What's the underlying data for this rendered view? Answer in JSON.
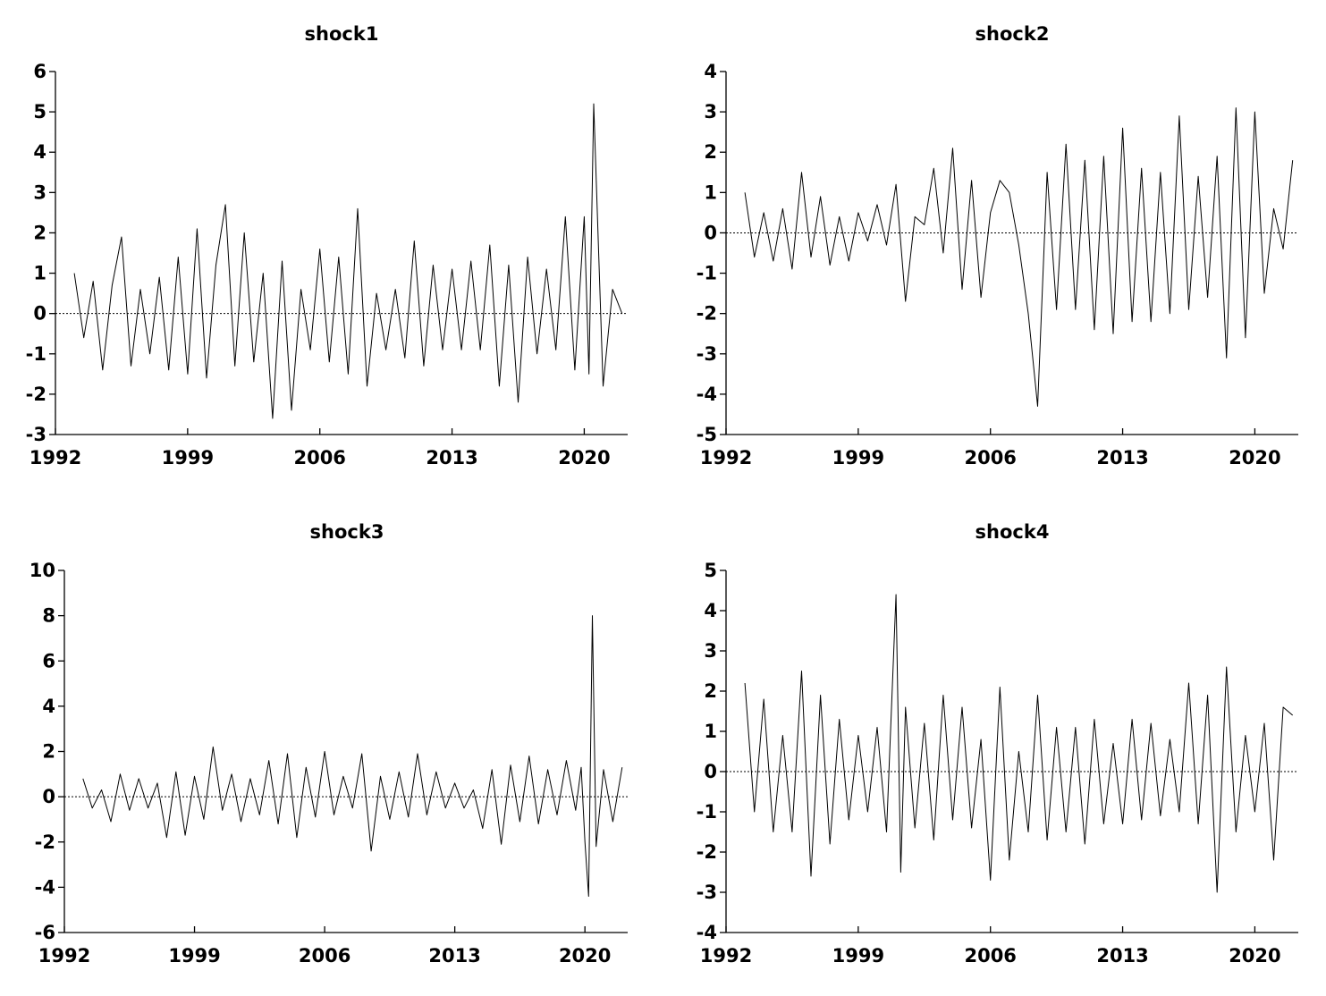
{
  "chart_data": [
    {
      "type": "line",
      "title": "shock1",
      "xlabel": "",
      "ylabel": "",
      "xlim": [
        1992,
        2022.3
      ],
      "ylim": [
        -3,
        6
      ],
      "x_ticks": [
        1992,
        1999,
        2006,
        2013,
        2020
      ],
      "y_ticks": [
        6,
        5,
        4,
        3,
        2,
        1,
        0,
        -1,
        -2,
        -3
      ],
      "zero_line": "dotted",
      "series": [
        {
          "x": [
            1993.0,
            1993.5,
            1994.0,
            1994.5,
            1995.0,
            1995.5,
            1996.0,
            1996.5,
            1997.0,
            1997.5,
            1998.0,
            1998.5,
            1999.0,
            1999.5,
            2000.0,
            2000.5,
            2001.0,
            2001.5,
            2002.0,
            2002.5,
            2003.0,
            2003.5,
            2004.0,
            2004.5,
            2005.0,
            2005.5,
            2006.0,
            2006.5,
            2007.0,
            2007.5,
            2008.0,
            2008.5,
            2009.0,
            2009.5,
            2010.0,
            2010.5,
            2011.0,
            2011.5,
            2012.0,
            2012.5,
            2013.0,
            2013.5,
            2014.0,
            2014.5,
            2015.0,
            2015.5,
            2016.0,
            2016.5,
            2017.0,
            2017.5,
            2018.0,
            2018.5,
            2019.0,
            2019.5,
            2020.0,
            2020.25,
            2020.5,
            2021.0,
            2021.5,
            2022.0
          ],
          "y": [
            1.0,
            -0.6,
            0.8,
            -1.4,
            0.7,
            1.9,
            -1.3,
            0.6,
            -1.0,
            0.9,
            -1.4,
            1.4,
            -1.5,
            2.1,
            -1.6,
            1.2,
            2.7,
            -1.3,
            2.0,
            -1.2,
            1.0,
            -2.6,
            1.3,
            -2.4,
            0.6,
            -0.9,
            1.6,
            -1.2,
            1.4,
            -1.5,
            2.6,
            -1.8,
            0.5,
            -0.9,
            0.6,
            -1.1,
            1.8,
            -1.3,
            1.2,
            -0.9,
            1.1,
            -0.9,
            1.3,
            -0.9,
            1.7,
            -1.8,
            1.2,
            -2.2,
            1.4,
            -1.0,
            1.1,
            -0.9,
            2.4,
            -1.4,
            2.4,
            -1.5,
            5.2,
            -1.8,
            0.6,
            0.0
          ]
        }
      ]
    },
    {
      "type": "line",
      "title": "shock2",
      "xlabel": "",
      "ylabel": "",
      "xlim": [
        1992,
        2022.3
      ],
      "ylim": [
        -5,
        4
      ],
      "x_ticks": [
        1992,
        1999,
        2006,
        2013,
        2020
      ],
      "y_ticks": [
        4,
        3,
        2,
        1,
        0,
        -1,
        -2,
        -3,
        -4,
        -5
      ],
      "zero_line": "dotted",
      "series": [
        {
          "x": [
            1993.0,
            1993.5,
            1994.0,
            1994.5,
            1995.0,
            1995.5,
            1996.0,
            1996.5,
            1997.0,
            1997.5,
            1998.0,
            1998.5,
            1999.0,
            1999.5,
            2000.0,
            2000.5,
            2001.0,
            2001.5,
            2002.0,
            2002.5,
            2003.0,
            2003.5,
            2004.0,
            2004.5,
            2005.0,
            2005.5,
            2006.0,
            2006.5,
            2007.0,
            2007.5,
            2008.0,
            2008.5,
            2009.0,
            2009.5,
            2010.0,
            2010.5,
            2011.0,
            2011.5,
            2012.0,
            2012.5,
            2013.0,
            2013.5,
            2014.0,
            2014.5,
            2015.0,
            2015.5,
            2016.0,
            2016.5,
            2017.0,
            2017.5,
            2018.0,
            2018.5,
            2019.0,
            2019.5,
            2020.0,
            2020.5,
            2021.0,
            2021.5,
            2022.0
          ],
          "y": [
            1.0,
            -0.6,
            0.5,
            -0.7,
            0.6,
            -0.9,
            1.5,
            -0.6,
            0.9,
            -0.8,
            0.4,
            -0.7,
            0.5,
            -0.2,
            0.7,
            -0.3,
            1.2,
            -1.7,
            0.4,
            0.2,
            1.6,
            -0.5,
            2.1,
            -1.4,
            1.3,
            -1.6,
            0.5,
            1.3,
            1.0,
            -0.3,
            -2.0,
            -4.3,
            1.5,
            -1.9,
            2.2,
            -1.9,
            1.8,
            -2.4,
            1.9,
            -2.5,
            2.6,
            -2.2,
            1.6,
            -2.2,
            1.5,
            -2.0,
            2.9,
            -1.9,
            1.4,
            -1.6,
            1.9,
            -3.1,
            3.1,
            -2.6,
            3.0,
            -1.5,
            0.6,
            -0.4,
            1.8
          ]
        }
      ]
    },
    {
      "type": "line",
      "title": "shock3",
      "xlabel": "",
      "ylabel": "",
      "xlim": [
        1992,
        2022.3
      ],
      "ylim": [
        -6,
        10
      ],
      "x_ticks": [
        1992,
        1999,
        2006,
        2013,
        2020
      ],
      "y_ticks": [
        10,
        8,
        6,
        4,
        2,
        0,
        -2,
        -4,
        -6
      ],
      "zero_line": "dotted",
      "series": [
        {
          "x": [
            1993.0,
            1993.5,
            1994.0,
            1994.5,
            1995.0,
            1995.5,
            1996.0,
            1996.5,
            1997.0,
            1997.5,
            1998.0,
            1998.5,
            1999.0,
            1999.5,
            2000.0,
            2000.5,
            2001.0,
            2001.5,
            2002.0,
            2002.5,
            2003.0,
            2003.5,
            2004.0,
            2004.5,
            2005.0,
            2005.5,
            2006.0,
            2006.5,
            2007.0,
            2007.5,
            2008.0,
            2008.5,
            2009.0,
            2009.5,
            2010.0,
            2010.5,
            2011.0,
            2011.5,
            2012.0,
            2012.5,
            2013.0,
            2013.5,
            2014.0,
            2014.5,
            2015.0,
            2015.5,
            2016.0,
            2016.5,
            2017.0,
            2017.5,
            2018.0,
            2018.5,
            2019.0,
            2019.5,
            2019.8,
            2020.0,
            2020.2,
            2020.4,
            2020.6,
            2021.0,
            2021.5,
            2022.0
          ],
          "y": [
            0.8,
            -0.5,
            0.3,
            -1.1,
            1.0,
            -0.6,
            0.8,
            -0.5,
            0.6,
            -1.8,
            1.1,
            -1.7,
            0.9,
            -1.0,
            2.2,
            -0.6,
            1.0,
            -1.1,
            0.8,
            -0.8,
            1.6,
            -1.2,
            1.9,
            -1.8,
            1.3,
            -0.9,
            2.0,
            -0.8,
            0.9,
            -0.5,
            1.9,
            -2.4,
            0.9,
            -1.0,
            1.1,
            -0.9,
            1.9,
            -0.8,
            1.1,
            -0.5,
            0.6,
            -0.5,
            0.3,
            -1.4,
            1.2,
            -2.1,
            1.4,
            -1.1,
            1.8,
            -1.2,
            1.2,
            -0.8,
            1.6,
            -0.6,
            1.3,
            -2.0,
            -4.4,
            8.0,
            -2.2,
            1.2,
            -1.1,
            1.3
          ]
        }
      ]
    },
    {
      "type": "line",
      "title": "shock4",
      "xlabel": "",
      "ylabel": "",
      "xlim": [
        1992,
        2022.3
      ],
      "ylim": [
        -4,
        5
      ],
      "x_ticks": [
        1992,
        1999,
        2006,
        2013,
        2020
      ],
      "y_ticks": [
        5,
        4,
        3,
        2,
        1,
        0,
        -1,
        -2,
        -3,
        -4
      ],
      "zero_line": "dotted",
      "series": [
        {
          "x": [
            1993.0,
            1993.5,
            1994.0,
            1994.5,
            1995.0,
            1995.5,
            1996.0,
            1996.5,
            1997.0,
            1997.5,
            1998.0,
            1998.5,
            1999.0,
            1999.5,
            2000.0,
            2000.5,
            2001.0,
            2001.25,
            2001.5,
            2002.0,
            2002.5,
            2003.0,
            2003.5,
            2004.0,
            2004.5,
            2005.0,
            2005.5,
            2006.0,
            2006.5,
            2007.0,
            2007.5,
            2008.0,
            2008.5,
            2009.0,
            2009.5,
            2010.0,
            2010.5,
            2011.0,
            2011.5,
            2012.0,
            2012.5,
            2013.0,
            2013.5,
            2014.0,
            2014.5,
            2015.0,
            2015.5,
            2016.0,
            2016.5,
            2017.0,
            2017.5,
            2018.0,
            2018.5,
            2019.0,
            2019.5,
            2020.0,
            2020.5,
            2021.0,
            2021.5,
            2022.0
          ],
          "y": [
            2.2,
            -1.0,
            1.8,
            -1.5,
            0.9,
            -1.5,
            2.5,
            -2.6,
            1.9,
            -1.8,
            1.3,
            -1.2,
            0.9,
            -1.0,
            1.1,
            -1.5,
            4.4,
            -2.5,
            1.6,
            -1.4,
            1.2,
            -1.7,
            1.9,
            -1.2,
            1.6,
            -1.4,
            0.8,
            -2.7,
            2.1,
            -2.2,
            0.5,
            -1.5,
            1.9,
            -1.7,
            1.1,
            -1.5,
            1.1,
            -1.8,
            1.3,
            -1.3,
            0.7,
            -1.3,
            1.3,
            -1.2,
            1.2,
            -1.1,
            0.8,
            -1.0,
            2.2,
            -1.3,
            1.9,
            -3.0,
            2.6,
            -1.5,
            0.9,
            -1.0,
            1.2,
            -2.2,
            1.6,
            1.4
          ]
        }
      ]
    }
  ]
}
